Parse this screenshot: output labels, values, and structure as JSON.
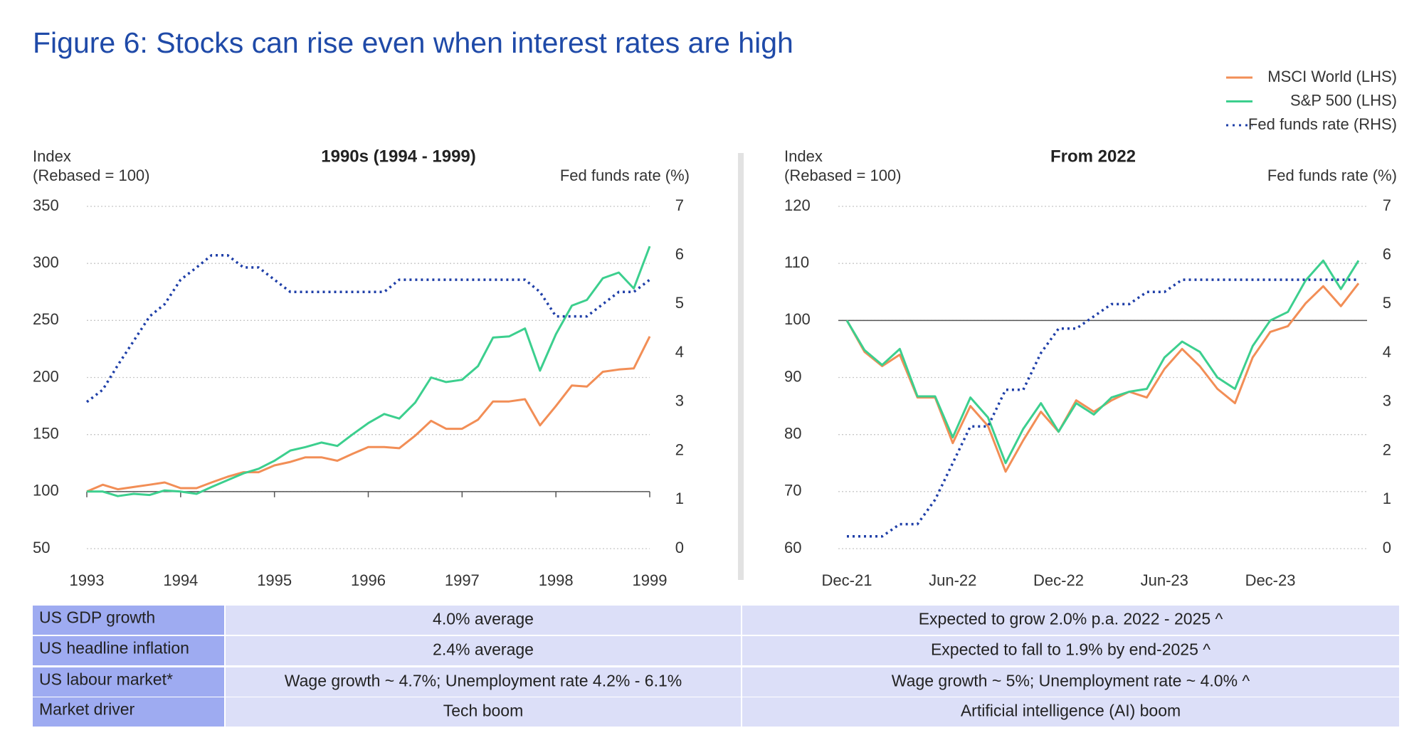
{
  "title": "Figure 6: Stocks can rise even when interest rates are high",
  "chart_data": [
    {
      "type": "line",
      "title": "1990s (1994 - 1999)",
      "y_label": [
        "Index",
        "(Rebased = 100)"
      ],
      "y2_label": "Fed funds rate (%)",
      "legend": "upper right",
      "grid": true,
      "x_axis_at": 100,
      "x": [
        1993,
        1993.17,
        1993.33,
        1993.5,
        1993.67,
        1993.83,
        1994,
        1994.17,
        1994.33,
        1994.5,
        1994.67,
        1994.83,
        1995,
        1995.17,
        1995.33,
        1995.5,
        1995.67,
        1995.83,
        1996,
        1996.17,
        1996.33,
        1996.5,
        1996.67,
        1996.83,
        1997,
        1997.17,
        1997.33,
        1997.5,
        1997.67,
        1997.83,
        1998,
        1998.17,
        1998.33,
        1998.5,
        1998.67,
        1998.83,
        1999
      ],
      "xlim": [
        1993,
        1999
      ],
      "xticks": [
        1993,
        1994,
        1995,
        1996,
        1997,
        1998,
        1999
      ],
      "ylim": [
        50,
        350
      ],
      "yticks": [
        50,
        100,
        150,
        200,
        250,
        300,
        350
      ],
      "y2lim": [
        0,
        7
      ],
      "y2ticks": [
        0,
        1,
        2,
        3,
        4,
        5,
        6,
        7
      ],
      "series": [
        {
          "name": "MSCI World (LHS)",
          "color": "#f28e56",
          "values": [
            100,
            106,
            102,
            104,
            106,
            108,
            103,
            103,
            108,
            113,
            117,
            117,
            123,
            126,
            130,
            130,
            127,
            133,
            139,
            139,
            138,
            149,
            162,
            155,
            155,
            163,
            179,
            179,
            181,
            158,
            175,
            193,
            192,
            205,
            207,
            208,
            236
          ]
        },
        {
          "name": "S&P 500 (LHS)",
          "color": "#3ccf8e",
          "values": [
            100,
            100,
            96,
            98,
            97,
            101,
            100,
            98,
            104,
            110,
            116,
            120,
            127,
            136,
            139,
            143,
            140,
            150,
            160,
            168,
            164,
            178,
            200,
            196,
            198,
            210,
            235,
            236,
            243,
            206,
            238,
            263,
            268,
            287,
            292,
            278,
            315
          ]
        },
        {
          "name": "Fed funds rate (RHS)",
          "color": "#1f3fa8",
          "axis": "y2",
          "line_style": "dotted",
          "values": [
            3.0,
            3.25,
            3.75,
            4.25,
            4.75,
            5.0,
            5.5,
            5.75,
            6.0,
            6.0,
            5.75,
            5.75,
            5.5,
            5.25,
            5.25,
            5.25,
            5.25,
            5.25,
            5.25,
            5.25,
            5.5,
            5.5,
            5.5,
            5.5,
            5.5,
            5.5,
            5.5,
            5.5,
            5.5,
            5.25,
            4.75,
            4.75,
            4.75,
            5.0,
            5.25,
            5.25,
            5.5
          ]
        }
      ]
    },
    {
      "type": "line",
      "title": "From 2022",
      "y_label": [
        "Index",
        "(Rebased = 100)"
      ],
      "y2_label": "Fed funds rate (%)",
      "grid": true,
      "x_axis_at": 100,
      "categories": [
        "Dec-21",
        null,
        null,
        null,
        null,
        null,
        "Jun-22",
        null,
        null,
        null,
        null,
        null,
        "Dec-22",
        null,
        null,
        null,
        null,
        null,
        "Jun-23",
        null,
        null,
        null,
        null,
        null,
        "Dec-23",
        null,
        null,
        null,
        null,
        null
      ],
      "ylim": [
        60,
        120
      ],
      "yticks": [
        60,
        70,
        80,
        90,
        100,
        110,
        120
      ],
      "y2lim": [
        0,
        7
      ],
      "y2ticks": [
        0,
        1,
        2,
        3,
        4,
        5,
        6,
        7
      ],
      "series": [
        {
          "color": "#f28e56",
          "values": [
            100,
            94.5,
            92,
            94,
            86.5,
            86.5,
            78.5,
            85,
            81.5,
            73.5,
            79,
            84,
            80.5,
            86,
            84,
            86,
            87.5,
            86.5,
            91.5,
            95,
            92,
            88,
            85.5,
            93.5,
            98,
            99,
            103,
            106,
            102.5,
            106.5
          ]
        },
        {
          "color": "#3ccf8e",
          "values": [
            100,
            94.8,
            92.2,
            95,
            86.7,
            86.7,
            79.5,
            86.5,
            83,
            75,
            81,
            85.5,
            80.5,
            85.5,
            83.5,
            86.5,
            87.5,
            88,
            93.5,
            96.3,
            94.5,
            90,
            88,
            95.5,
            100,
            101.5,
            107,
            110.5,
            105.5,
            110.5
          ]
        },
        {
          "color": "#1f3fa8",
          "axis": "y2",
          "line_style": "dotted",
          "values": [
            0.25,
            0.25,
            0.25,
            0.5,
            0.5,
            1.0,
            1.75,
            2.5,
            2.5,
            3.25,
            3.25,
            4.0,
            4.5,
            4.5,
            4.75,
            5.0,
            5.0,
            5.25,
            5.25,
            5.5,
            5.5,
            5.5,
            5.5,
            5.5,
            5.5,
            5.5,
            5.5,
            5.5,
            5.5,
            5.5
          ]
        }
      ]
    }
  ],
  "table": {
    "rows": [
      [
        "US GDP growth",
        "4.0% average",
        "Expected to grow 2.0% p.a. 2022 - 2025 ^"
      ],
      [
        "US headline inflation",
        "2.4% average",
        "Expected to fall to 1.9% by end-2025 ^"
      ],
      [
        "US labour market*",
        "Wage growth ~ 4.7%; Unemployment rate 4.2% - 6.1%",
        "Wage growth ~ 5%; Unemployment rate ~ 4.0% ^"
      ],
      [
        "Market driver",
        "Tech boom",
        "Artificial intelligence (AI) boom"
      ]
    ]
  }
}
